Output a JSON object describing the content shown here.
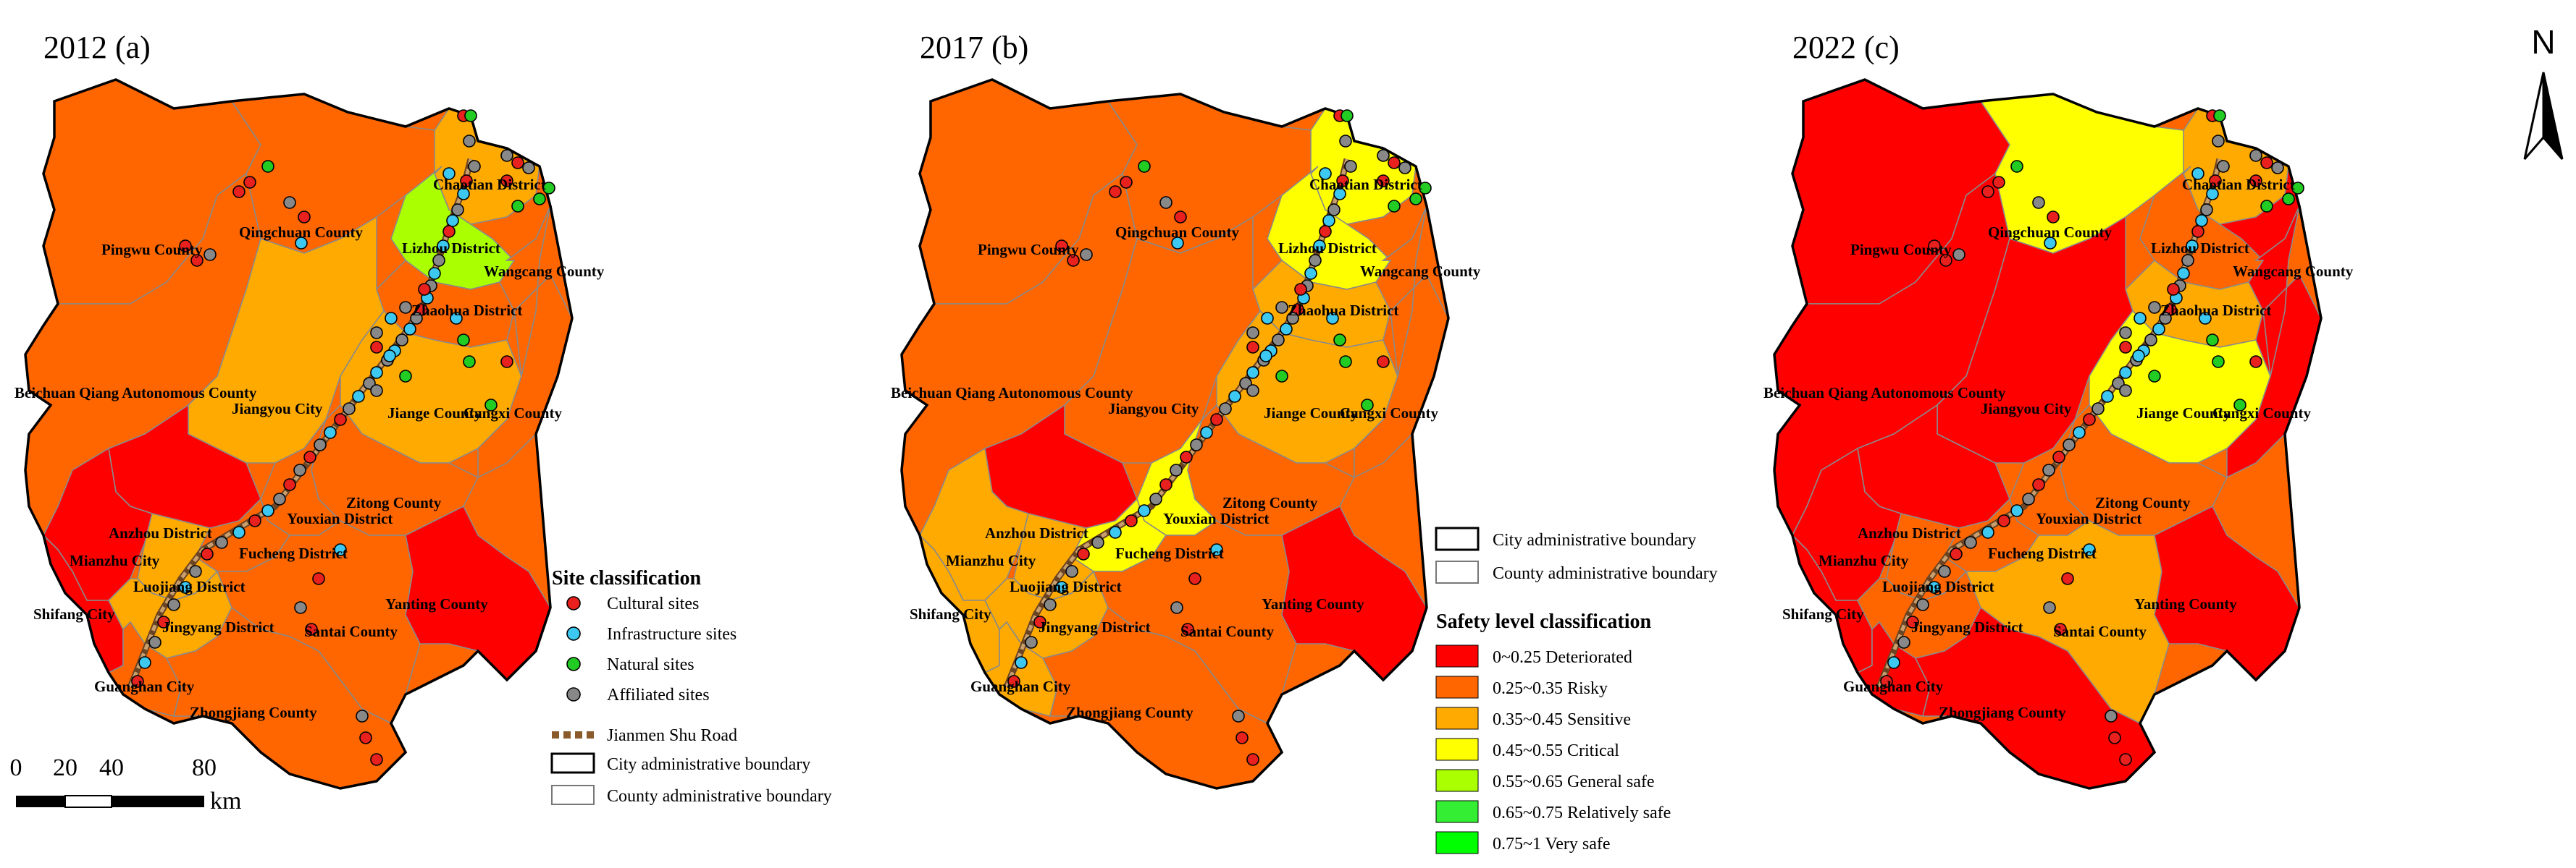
{
  "colors": {
    "deteriorated": "#FF0000",
    "risky": "#FF6600",
    "sensitive": "#FFAA00",
    "critical": "#FFFF00",
    "general_safe": "#AAFF00",
    "relatively_safe": "#33EE33",
    "very_safe": "#00FF00",
    "cultural": "#E8201E",
    "infrastructure": "#3CC8F0",
    "natural": "#22CC22",
    "affiliated": "#888888",
    "road": "#8B5A2B"
  },
  "place_names": {
    "chaotian": "Chaotian District",
    "qingchuan": "Qingchuan County",
    "pingwu": "Pingwu County",
    "lizhou": "Lizhou District",
    "wangcang": "Wangcang County",
    "zhaohua": "Zhaohua District",
    "beichuan": "Beichuan Qiang Autonomous County",
    "jiangyou": "Jiangyou City",
    "jiange": "Jiange County",
    "cangxi": "Cangxi County",
    "zitong": "Zitong County",
    "youxian": "Youxian District",
    "anzhou": "Anzhou District",
    "fucheng": "Fucheng District",
    "mianzhu": "Mianzhu City",
    "luojiang": "Luojiang District",
    "shifang": "Shifang City",
    "jingyang": "Jingyang District",
    "santai": "Santai County",
    "yanting": "Yanting County",
    "guanghan": "Guanghan City",
    "zhongjiang": "Zhongjiang County"
  },
  "panels": [
    {
      "title": "2012 (a)",
      "levels": {
        "pingwu": "risky",
        "qingchuan": "risky",
        "chaotian": "sensitive",
        "lizhou": "general_safe",
        "wangcang": "risky",
        "zhaohua": "risky",
        "beichuan": "risky",
        "jiangyou": "sensitive",
        "jiange": "sensitive",
        "cangxi": "risky",
        "zitong": "risky",
        "youxian": "risky",
        "anzhou": "deteriorated",
        "fucheng": "risky",
        "mianzhu": "deteriorated",
        "luojiang": "sensitive",
        "shifang": "deteriorated",
        "jingyang": "sensitive",
        "santai": "risky",
        "yanting": "deteriorated",
        "guanghan": "risky",
        "zhongjiang": "risky"
      }
    },
    {
      "title": "2017 (b)",
      "levels": {
        "pingwu": "risky",
        "qingchuan": "risky",
        "chaotian": "critical",
        "lizhou": "critical",
        "wangcang": "risky",
        "zhaohua": "sensitive",
        "beichuan": "risky",
        "jiangyou": "risky",
        "jiange": "sensitive",
        "cangxi": "risky",
        "zitong": "risky",
        "youxian": "critical",
        "anzhou": "deteriorated",
        "fucheng": "critical",
        "mianzhu": "sensitive",
        "luojiang": "sensitive",
        "shifang": "sensitive",
        "jingyang": "sensitive",
        "santai": "risky",
        "yanting": "deteriorated",
        "guanghan": "sensitive",
        "zhongjiang": "risky"
      }
    },
    {
      "title": "2022 (c)",
      "levels": {
        "pingwu": "deteriorated",
        "qingchuan": "critical",
        "chaotian": "sensitive",
        "lizhou": "risky",
        "wangcang": "deteriorated",
        "zhaohua": "sensitive",
        "beichuan": "deteriorated",
        "jiangyou": "deteriorated",
        "jiange": "critical",
        "cangxi": "deteriorated",
        "zitong": "risky",
        "youxian": "risky",
        "anzhou": "deteriorated",
        "fucheng": "risky",
        "mianzhu": "deteriorated",
        "luojiang": "risky",
        "shifang": "deteriorated",
        "jingyang": "risky",
        "santai": "sensitive",
        "yanting": "deteriorated",
        "guanghan": "deteriorated",
        "zhongjiang": "deteriorated"
      }
    }
  ],
  "site_legend": {
    "title": "Site classification",
    "items": [
      {
        "label": "Cultural sites",
        "type": "cultural"
      },
      {
        "label": "Infrastructure sites",
        "type": "infrastructure"
      },
      {
        "label": "Natural sites",
        "type": "natural"
      },
      {
        "label": "Affiliated sites",
        "type": "affiliated"
      }
    ],
    "road_label": "Jianmen Shu Road",
    "city_boundary_label": "City administrative boundary",
    "county_boundary_label": "County administrative boundary"
  },
  "boundary_legend": {
    "city_boundary_label": "City administrative boundary",
    "county_boundary_label": "County administrative boundary"
  },
  "safety_legend": {
    "title": "Safety level classification",
    "items": [
      {
        "label": "0~0.25 Deteriorated",
        "level": "deteriorated"
      },
      {
        "label": "0.25~0.35 Risky",
        "level": "risky"
      },
      {
        "label": "0.35~0.45 Sensitive",
        "level": "sensitive"
      },
      {
        "label": "0.45~0.55 Critical",
        "level": "critical"
      },
      {
        "label": "0.55~0.65 General safe",
        "level": "general_safe"
      },
      {
        "label": "0.65~0.75 Relatively safe",
        "level": "relatively_safe"
      },
      {
        "label": "0.75~1 Very safe",
        "level": "very_safe"
      }
    ]
  },
  "scale_bar": {
    "ticks": [
      "0",
      "20",
      "40",
      "80"
    ],
    "unit": "km"
  },
  "north_label": "N"
}
